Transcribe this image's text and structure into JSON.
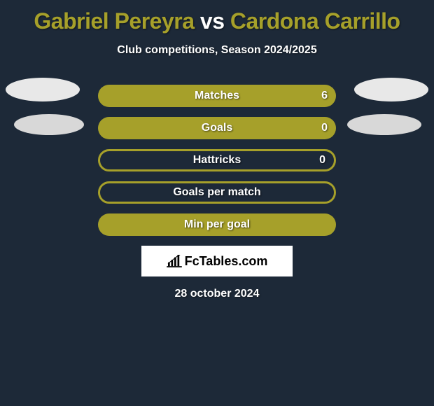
{
  "title": {
    "player1": "Gabriel Pereyra",
    "vs": "vs",
    "player2": "Cardona Carrillo",
    "player1_color": "#a6a02a",
    "vs_color": "#ffffff",
    "player2_color": "#a6a02a"
  },
  "subtitle": "Club competitions, Season 2024/2025",
  "background_color": "#1d2938",
  "stats": [
    {
      "label": "Matches",
      "value_right": "6",
      "fill": "full",
      "bg": "#a6a02a"
    },
    {
      "label": "Goals",
      "value_right": "0",
      "fill": "full",
      "bg": "#a6a02a"
    },
    {
      "label": "Hattricks",
      "value_right": "0",
      "fill": "outline",
      "bg": "#a6a02a"
    },
    {
      "label": "Goals per match",
      "value_right": "",
      "fill": "outline",
      "bg": "#a6a02a"
    },
    {
      "label": "Min per goal",
      "value_right": "",
      "fill": "full",
      "bg": "#a6a02a"
    }
  ],
  "bar_outline_width": 3,
  "ellipse_color_top": "#e8e8e8",
  "ellipse_color_bottom": "#d8d8d8",
  "logo_text": "FcTables.com",
  "date": "28 october 2024",
  "text_color": "#ffffff"
}
